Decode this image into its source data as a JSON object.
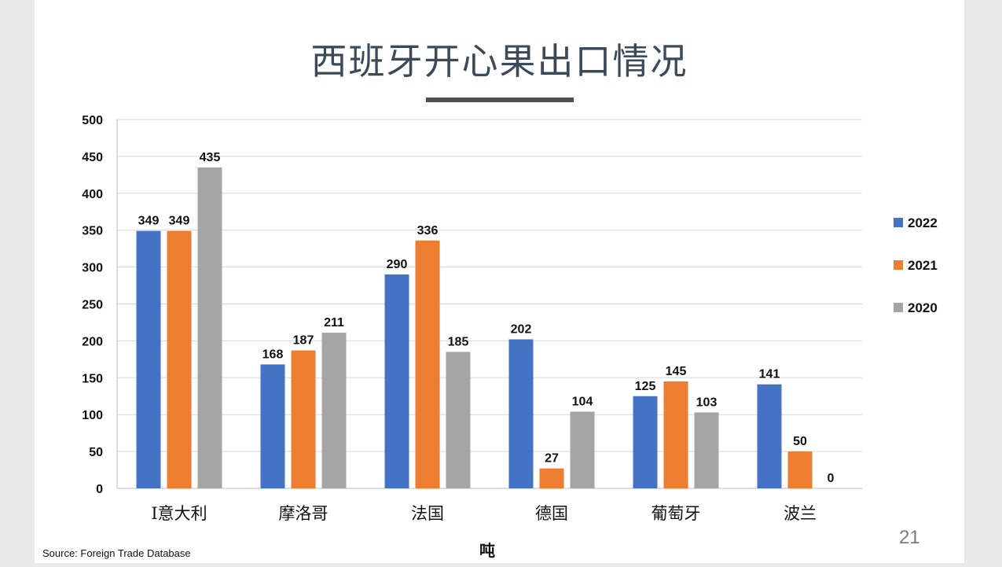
{
  "page": {
    "title": "西班牙开心果出口情况",
    "source": "Source: Foreign Trade Database",
    "page_number": "21"
  },
  "chart_data": {
    "type": "bar",
    "title": "西班牙开心果出口情况",
    "xlabel": "吨",
    "ylabel": "",
    "categories": [
      "I意大利",
      "摩洛哥",
      "法国",
      "德国",
      "葡萄牙",
      "波兰"
    ],
    "series": [
      {
        "name": "2022",
        "color": "#4472c4",
        "values": [
          349,
          168,
          290,
          202,
          125,
          141
        ]
      },
      {
        "name": "2021",
        "color": "#ed7d31",
        "values": [
          349,
          187,
          336,
          27,
          145,
          50
        ]
      },
      {
        "name": "2020",
        "color": "#a5a5a5",
        "values": [
          435,
          211,
          185,
          104,
          103,
          0
        ]
      }
    ],
    "ylim": [
      0,
      500
    ],
    "yticks": [
      0,
      50,
      100,
      150,
      200,
      250,
      300,
      350,
      400,
      450,
      500
    ],
    "grid": true,
    "legend": "right"
  }
}
